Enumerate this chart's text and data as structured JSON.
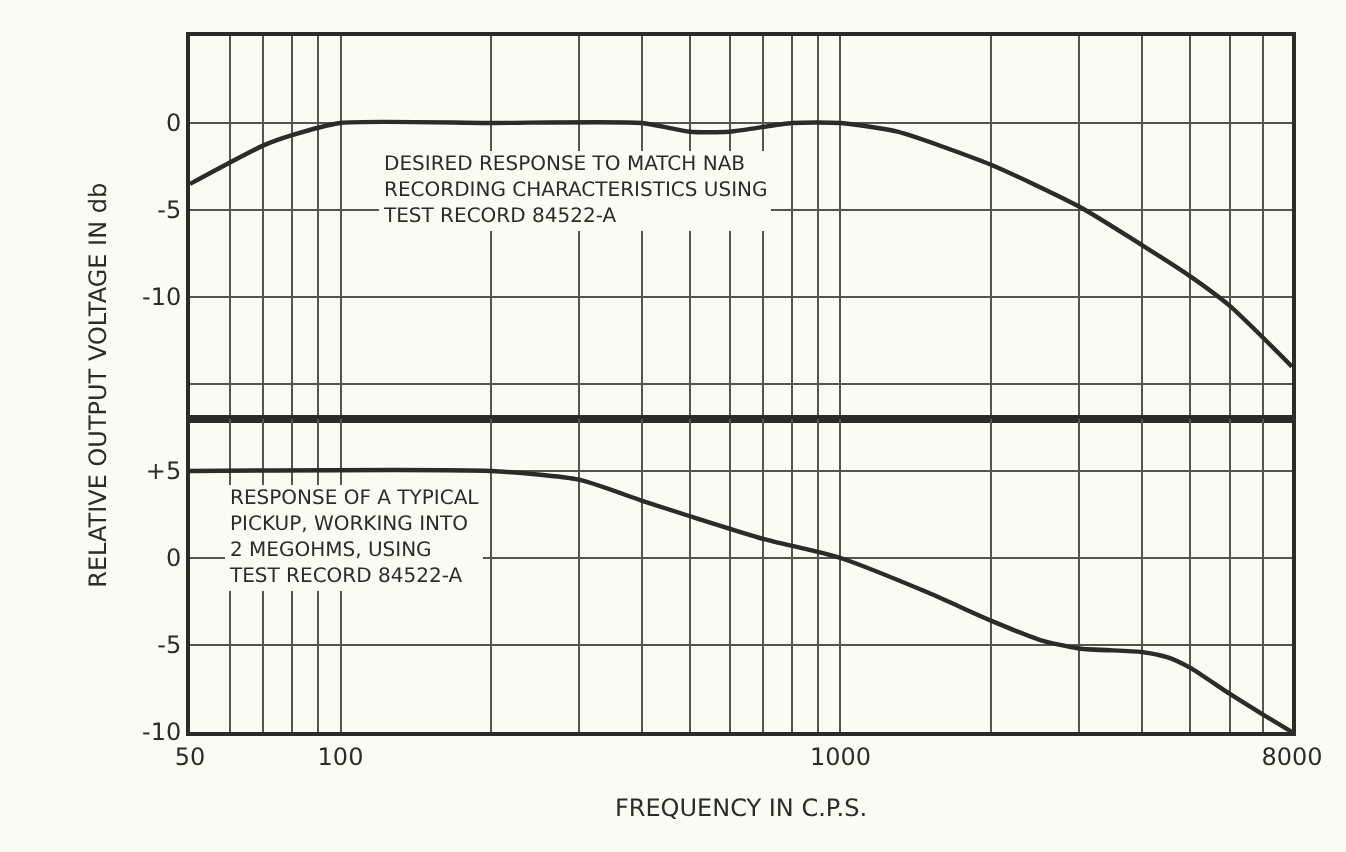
{
  "chart_data": [
    {
      "type": "line",
      "ylabel": "RELATIVE OUTPUT VOLTAGE IN db",
      "tick_labels": "y",
      "grid": true,
      "x": [
        50,
        70,
        80,
        100,
        200,
        400,
        500,
        600,
        800,
        1000,
        1300,
        2000,
        3000,
        4000,
        5000,
        6000,
        8000
      ],
      "series": [
        {
          "color": "#2b2b28",
          "values": [
            -3.5,
            -1.3,
            -0.7,
            0,
            0,
            0,
            -0.5,
            -0.5,
            0,
            0,
            -0.5,
            -2.4,
            -4.8,
            -7,
            -8.8,
            -10.5,
            -14
          ]
        }
      ],
      "xlim": [
        50,
        8000
      ],
      "xticks": [
        {
          "value": 50,
          "label": null
        },
        {
          "value": 60,
          "label": null
        },
        {
          "value": 70,
          "label": null
        },
        {
          "value": 80,
          "label": null
        },
        {
          "value": 90,
          "label": null
        },
        {
          "value": 100,
          "label": null
        },
        {
          "value": 200,
          "label": null
        },
        {
          "value": 300,
          "label": null
        },
        {
          "value": 400,
          "label": null
        },
        {
          "value": 500,
          "label": null
        },
        {
          "value": 600,
          "label": null
        },
        {
          "value": 700,
          "label": null
        },
        {
          "value": 800,
          "label": null
        },
        {
          "value": 900,
          "label": null
        },
        {
          "value": 1000,
          "label": null
        },
        {
          "value": 2000,
          "label": null
        },
        {
          "value": 3000,
          "label": null
        },
        {
          "value": 4000,
          "label": null
        },
        {
          "value": 5000,
          "label": null
        },
        {
          "value": 6000,
          "label": null
        },
        {
          "value": 7000,
          "label": null
        },
        {
          "value": 8000,
          "label": null
        }
      ],
      "log": "x",
      "ylim": [
        -17,
        5
      ],
      "yticks": [
        {
          "value": -15,
          "label": null
        },
        -10,
        -5,
        0
      ],
      "annotations": [
        "DESIRED RESPONSE TO MATCH NAB\nRECORDING CHARACTERISTICS USING\nTEST RECORD 84522-A"
      ]
    },
    {
      "type": "line",
      "xlabel": "FREQUENCY IN C.P.S.",
      "grid": true,
      "x": [
        50,
        200,
        300,
        400,
        500,
        700,
        1000,
        1500,
        2000,
        2500,
        3000,
        4000,
        4500,
        5000,
        6000,
        7000,
        8000
      ],
      "series": [
        {
          "color": "#2b2b28",
          "values": [
            5,
            5,
            4.5,
            3.3,
            2.4,
            1.1,
            0,
            -2,
            -3.6,
            -4.7,
            -5.2,
            -5.4,
            -5.7,
            -6.3,
            -7.8,
            -9,
            -10
          ]
        }
      ],
      "xlim": [
        50,
        8000
      ],
      "xticks": [
        50,
        {
          "value": 60,
          "label": null
        },
        {
          "value": 70,
          "label": null
        },
        {
          "value": 80,
          "label": null
        },
        {
          "value": 90,
          "label": null
        },
        100,
        {
          "value": 200,
          "label": null
        },
        {
          "value": 300,
          "label": null
        },
        {
          "value": 400,
          "label": null
        },
        {
          "value": 500,
          "label": null
        },
        {
          "value": 600,
          "label": null
        },
        {
          "value": 700,
          "label": null
        },
        {
          "value": 800,
          "label": null
        },
        {
          "value": 900,
          "label": null
        },
        1000,
        {
          "value": 2000,
          "label": null
        },
        {
          "value": 3000,
          "label": null
        },
        {
          "value": 4000,
          "label": null
        },
        {
          "value": 5000,
          "label": null
        },
        {
          "value": 6000,
          "label": null
        },
        {
          "value": 7000,
          "label": null
        },
        8000
      ],
      "log": "x",
      "ylim": [
        -10,
        8
      ],
      "yticks": [
        -10,
        -5,
        0,
        {
          "value": 5,
          "label": "+5"
        }
      ],
      "annotations": [
        "RESPONSE OF A TYPICAL\nPICKUP, WORKING INTO\n2 MEGOHMS, USING\nTEST RECORD 84522-A"
      ]
    }
  ]
}
